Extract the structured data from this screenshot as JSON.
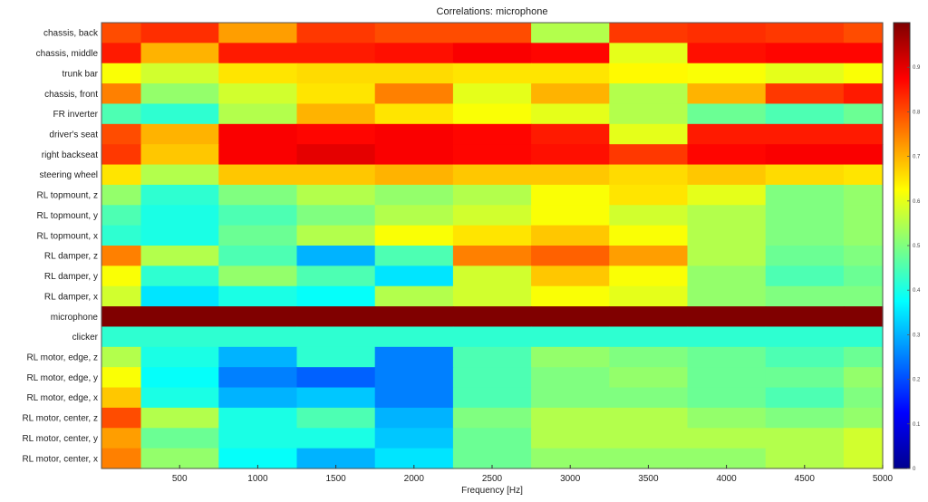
{
  "chart_data": {
    "type": "heatmap",
    "title": "Correlations: microphone",
    "xlabel": "Frequency [Hz]",
    "ylabel": "",
    "xlim": [
      0,
      5000
    ],
    "xticks": [
      500,
      1000,
      1500,
      2000,
      2500,
      3000,
      3500,
      4000,
      4500,
      5000
    ],
    "colorbar": {
      "min": 0,
      "max": 1,
      "ticks": [
        "0",
        "0.1",
        "0.2",
        "0.3",
        "0.4",
        "0.5",
        "0.6",
        "0.7",
        "0.8",
        "0.9"
      ],
      "colormap": "jet"
    },
    "rows": [
      "chassis, back",
      "chassis, middle",
      "trunk bar",
      "chassis, front",
      "FR inverter",
      "driver's seat",
      "right backseat",
      "steering wheel",
      "RL topmount, z",
      "RL topmount, y",
      "RL topmount, x",
      "RL damper, z",
      "RL damper, y",
      "RL damper, x",
      "microphone",
      "clicker",
      "RL motor, edge, z",
      "RL motor, edge, y",
      "RL motor, edge, x",
      "RL motor, center, z",
      "RL motor, center, y",
      "RL motor, center, x"
    ],
    "bands": [
      5,
      500,
      1000,
      1500,
      2000,
      2500,
      3000,
      3500,
      4000,
      4500,
      5000
    ],
    "values": [
      [
        0.8,
        0.83,
        0.72,
        0.82,
        0.8,
        0.8,
        0.55,
        0.82,
        0.83,
        0.82,
        0.8
      ],
      [
        0.85,
        0.7,
        0.85,
        0.85,
        0.86,
        0.88,
        0.87,
        0.6,
        0.86,
        0.87,
        0.87
      ],
      [
        0.62,
        0.58,
        0.65,
        0.66,
        0.66,
        0.65,
        0.65,
        0.63,
        0.62,
        0.6,
        0.62
      ],
      [
        0.75,
        0.52,
        0.58,
        0.65,
        0.75,
        0.6,
        0.7,
        0.55,
        0.7,
        0.82,
        0.85
      ],
      [
        0.45,
        0.42,
        0.55,
        0.7,
        0.65,
        0.62,
        0.6,
        0.55,
        0.48,
        0.45,
        0.48
      ],
      [
        0.8,
        0.7,
        0.88,
        0.87,
        0.88,
        0.87,
        0.85,
        0.6,
        0.85,
        0.85,
        0.85
      ],
      [
        0.82,
        0.68,
        0.88,
        0.9,
        0.88,
        0.87,
        0.86,
        0.82,
        0.87,
        0.88,
        0.88
      ],
      [
        0.65,
        0.55,
        0.68,
        0.68,
        0.7,
        0.68,
        0.68,
        0.66,
        0.68,
        0.66,
        0.65
      ],
      [
        0.52,
        0.42,
        0.5,
        0.55,
        0.52,
        0.55,
        0.62,
        0.65,
        0.6,
        0.5,
        0.52
      ],
      [
        0.45,
        0.4,
        0.45,
        0.5,
        0.55,
        0.58,
        0.62,
        0.58,
        0.55,
        0.5,
        0.52
      ],
      [
        0.42,
        0.4,
        0.48,
        0.55,
        0.62,
        0.65,
        0.68,
        0.62,
        0.55,
        0.5,
        0.52
      ],
      [
        0.75,
        0.55,
        0.45,
        0.3,
        0.45,
        0.75,
        0.78,
        0.72,
        0.55,
        0.48,
        0.5
      ],
      [
        0.62,
        0.42,
        0.52,
        0.45,
        0.35,
        0.58,
        0.68,
        0.62,
        0.52,
        0.45,
        0.48
      ],
      [
        0.58,
        0.35,
        0.4,
        0.38,
        0.55,
        0.58,
        0.62,
        0.6,
        0.52,
        0.5,
        0.5
      ],
      [
        1.0,
        1.0,
        1.0,
        1.0,
        1.0,
        1.0,
        1.0,
        1.0,
        1.0,
        1.0,
        1.0
      ],
      [
        0.42,
        0.42,
        0.42,
        0.42,
        0.42,
        0.42,
        0.42,
        0.42,
        0.42,
        0.42,
        0.42
      ],
      [
        0.55,
        0.4,
        0.3,
        0.42,
        0.25,
        0.45,
        0.52,
        0.5,
        0.48,
        0.45,
        0.48
      ],
      [
        0.62,
        0.38,
        0.25,
        0.22,
        0.25,
        0.45,
        0.5,
        0.52,
        0.48,
        0.48,
        0.52
      ],
      [
        0.68,
        0.4,
        0.3,
        0.32,
        0.25,
        0.45,
        0.5,
        0.5,
        0.48,
        0.45,
        0.5
      ],
      [
        0.8,
        0.55,
        0.4,
        0.45,
        0.3,
        0.5,
        0.55,
        0.55,
        0.52,
        0.5,
        0.52
      ],
      [
        0.72,
        0.48,
        0.4,
        0.4,
        0.32,
        0.48,
        0.55,
        0.55,
        0.55,
        0.55,
        0.58
      ],
      [
        0.75,
        0.52,
        0.38,
        0.3,
        0.35,
        0.48,
        0.52,
        0.52,
        0.52,
        0.55,
        0.58
      ]
    ]
  }
}
